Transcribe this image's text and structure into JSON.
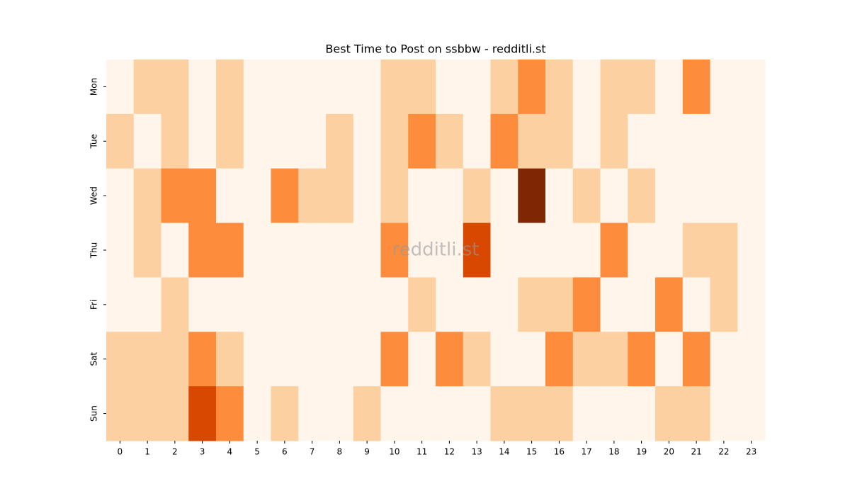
{
  "chart_data": {
    "type": "heatmap",
    "title": "Best Time to Post on ssbbw - redditli.st",
    "watermark": "redditli.st",
    "x": [
      "0",
      "1",
      "2",
      "3",
      "4",
      "5",
      "6",
      "7",
      "8",
      "9",
      "10",
      "11",
      "12",
      "13",
      "14",
      "15",
      "16",
      "17",
      "18",
      "19",
      "20",
      "21",
      "22",
      "23"
    ],
    "y": [
      "Mon",
      "Tue",
      "Wed",
      "Thu",
      "Fri",
      "Sat",
      "Sun"
    ],
    "values": [
      [
        0,
        1,
        1,
        0,
        1,
        0,
        0,
        0,
        0,
        0,
        1,
        1,
        0,
        0,
        1,
        2,
        1,
        0,
        1,
        1,
        0,
        2,
        0,
        0
      ],
      [
        1,
        0,
        1,
        0,
        1,
        0,
        0,
        0,
        1,
        0,
        1,
        2,
        1,
        0,
        2,
        1,
        1,
        0,
        1,
        0,
        0,
        0,
        0,
        0
      ],
      [
        0,
        1,
        2,
        2,
        0,
        0,
        2,
        1,
        1,
        0,
        1,
        0,
        0,
        1,
        0,
        4,
        0,
        1,
        0,
        1,
        0,
        0,
        0,
        0
      ],
      [
        0,
        1,
        0,
        2,
        2,
        0,
        0,
        0,
        0,
        0,
        2,
        0,
        0,
        3,
        0,
        0,
        0,
        0,
        2,
        0,
        0,
        1,
        1,
        0
      ],
      [
        0,
        0,
        1,
        0,
        0,
        0,
        0,
        0,
        0,
        0,
        0,
        1,
        0,
        0,
        0,
        1,
        1,
        2,
        0,
        0,
        2,
        0,
        1,
        0
      ],
      [
        1,
        1,
        1,
        2,
        1,
        0,
        0,
        0,
        0,
        0,
        2,
        0,
        2,
        1,
        0,
        0,
        2,
        1,
        1,
        2,
        0,
        2,
        0,
        0
      ],
      [
        1,
        1,
        1,
        3,
        2,
        0,
        1,
        0,
        0,
        1,
        0,
        0,
        0,
        0,
        1,
        1,
        1,
        0,
        0,
        0,
        1,
        1,
        0,
        0
      ]
    ],
    "vlim": [
      0,
      4
    ],
    "colors": [
      "#fff5eb",
      "#fdd0a2",
      "#fd8d3c",
      "#d94801",
      "#7f2704"
    ]
  }
}
